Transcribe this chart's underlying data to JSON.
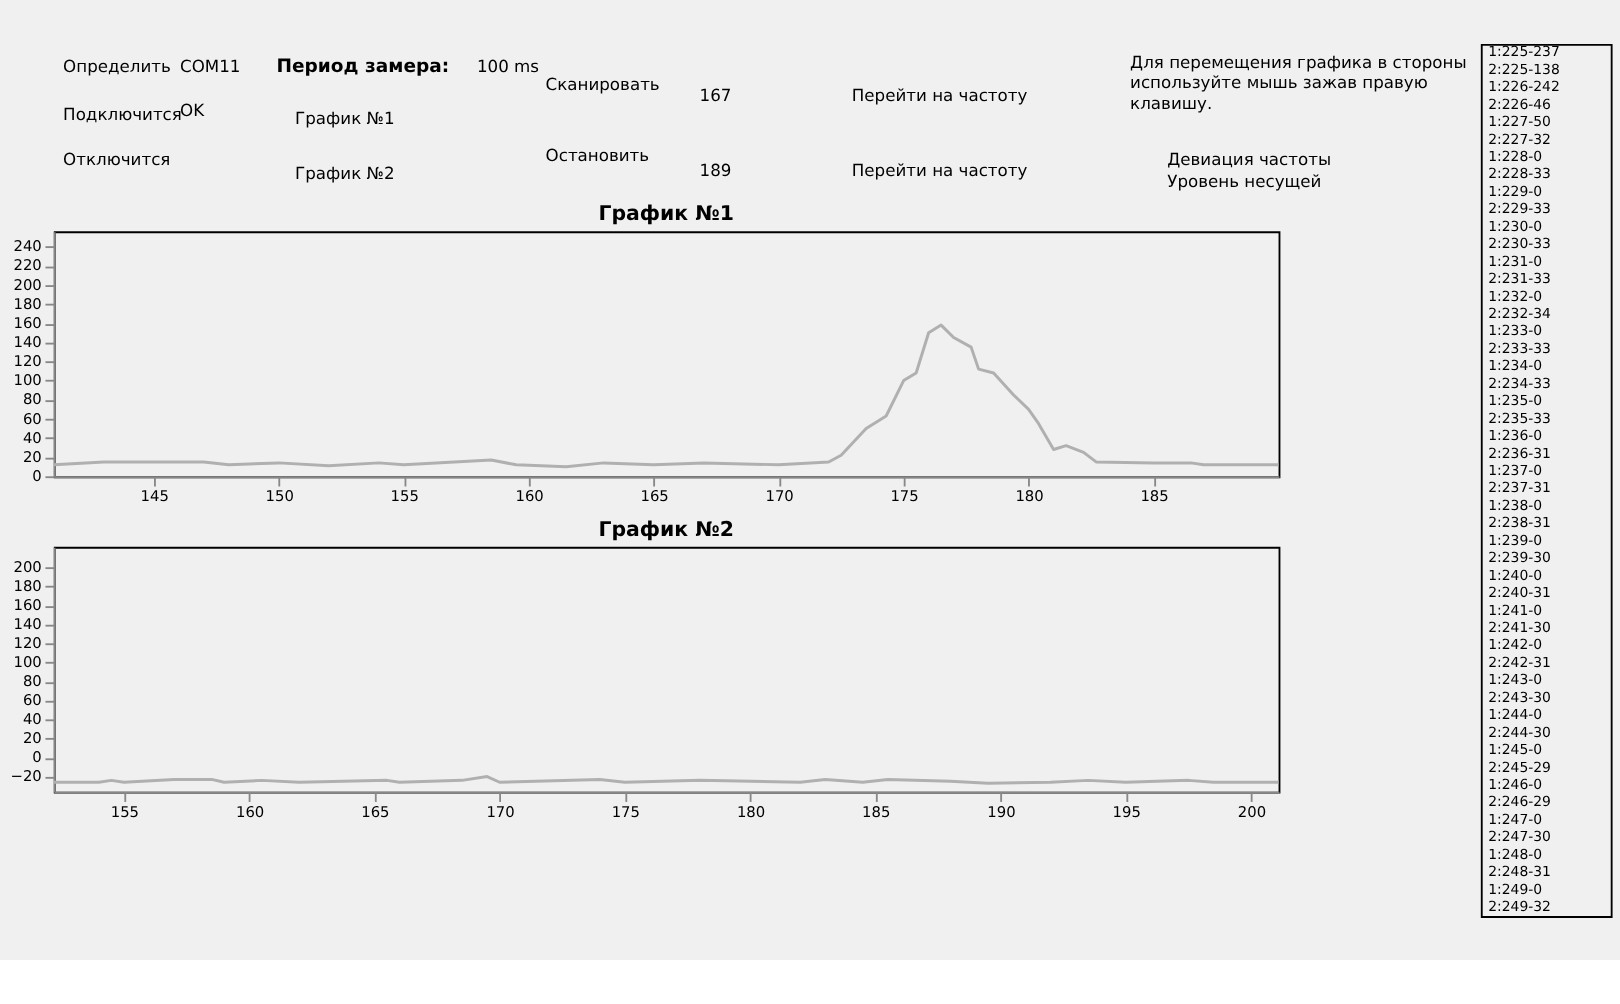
{
  "chart_data": [
    {
      "type": "other",
      "annotations": [
        "Определить",
        "COM11",
        "Подключится",
        "OK",
        "Отключится",
        "Период замера:",
        "100 ms",
        "График №1",
        "График №2",
        "Сканировать",
        "Остановить",
        "167",
        "Перейти на частоту",
        "189",
        "Перейти на частоту",
        "Для перемещения графика в стороны используйте мышь зажав правую клавишу.",
        "Девиация частоты",
        "Уровень несущей"
      ]
    },
    {
      "type": "line",
      "title": "График №1",
      "grid": false,
      "marker": "none",
      "line_style": "solid",
      "xlim": [
        141,
        190
      ],
      "xticks": [
        145,
        150,
        155,
        160,
        165,
        170,
        175,
        180,
        185
      ],
      "ylim": [
        0,
        256
      ],
      "yticks": [
        0,
        20,
        40,
        60,
        80,
        100,
        120,
        140,
        160,
        180,
        200,
        220,
        240
      ],
      "series": [
        {
          "color": "#b0b0b0",
          "x": [
            141,
            143,
            147,
            148,
            150,
            152,
            154,
            155,
            158.5,
            159.5,
            161.5,
            163,
            165,
            167,
            170,
            172,
            172.5,
            173.5,
            174.3,
            175,
            175.5,
            176,
            176.5,
            177,
            177.7,
            178,
            178.6,
            179.4,
            180,
            180.4,
            181,
            181.5,
            182.2,
            182.7,
            185,
            186.5,
            187,
            190
          ],
          "values": [
            12,
            15,
            15,
            12,
            14,
            11,
            14,
            12,
            17,
            12,
            10,
            14,
            12,
            14,
            12,
            15,
            22,
            50,
            63,
            100,
            108,
            150,
            158,
            145,
            135,
            112,
            108,
            85,
            70,
            55,
            28,
            32,
            25,
            15,
            14,
            14,
            12,
            12
          ]
        }
      ]
    },
    {
      "type": "line",
      "title": "График №2",
      "grid": false,
      "marker": "none",
      "line_style": "solid",
      "xlim": [
        152.2,
        201.1
      ],
      "xticks": [
        155,
        160,
        165,
        170,
        175,
        180,
        185,
        190,
        195,
        200
      ],
      "ylim": [
        -36,
        222
      ],
      "yticks": [
        -20,
        0,
        20,
        40,
        60,
        80,
        100,
        120,
        140,
        160,
        180,
        200
      ],
      "series": [
        {
          "color": "#b0b0b0",
          "x": [
            152.2,
            154,
            154.5,
            155,
            157,
            158.5,
            159,
            160.5,
            162,
            165.5,
            166,
            168.5,
            169.5,
            170,
            174,
            175,
            178,
            182,
            183,
            184.5,
            185.5,
            188,
            189.5,
            192,
            193.5,
            195,
            197.5,
            198.5,
            201.1
          ],
          "values": [
            -26,
            -26,
            -24,
            -26,
            -23,
            -23,
            -26,
            -24,
            -26,
            -24,
            -26,
            -24,
            -20,
            -26,
            -23,
            -26,
            -24,
            -26,
            -23,
            -26,
            -23,
            -25,
            -27,
            -26,
            -24,
            -26,
            -24,
            -26,
            -26
          ]
        }
      ]
    },
    {
      "type": "other",
      "annotations": [
        "1:225-237",
        "2:225-138",
        "1:226-242",
        "2:226-46",
        "1:227-50",
        "2:227-32",
        "1:228-0",
        "2:228-33",
        "1:229-0",
        "2:229-33",
        "1:230-0",
        "2:230-33",
        "1:231-0",
        "2:231-33",
        "1:232-0",
        "2:232-34",
        "1:233-0",
        "2:233-33",
        "1:234-0",
        "2:234-33",
        "1:235-0",
        "2:235-33",
        "1:236-0",
        "2:236-31",
        "1:237-0",
        "2:237-31",
        "1:238-0",
        "2:238-31",
        "1:239-0",
        "2:239-30",
        "1:240-0",
        "2:240-31",
        "1:241-0",
        "2:241-30",
        "1:242-0",
        "2:242-31",
        "1:243-0",
        "2:243-30",
        "1:244-0",
        "2:244-30",
        "1:245-0",
        "2:245-29",
        "1:246-0",
        "2:246-29",
        "1:247-0",
        "2:247-30",
        "1:248-0",
        "2:248-31",
        "1:249-0",
        "2:249-32"
      ]
    }
  ]
}
